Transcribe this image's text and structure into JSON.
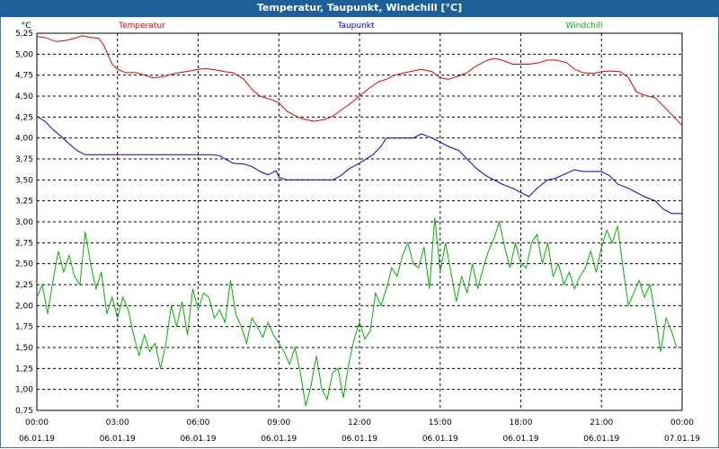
{
  "window": {
    "title": "Temperatur, Taupunkt, Windchill [°C]"
  },
  "chart_data": {
    "type": "line",
    "ylabel": "°C",
    "ylim": [
      0.75,
      5.25
    ],
    "yticks": [
      "5,25",
      "5,00",
      "4,75",
      "4,50",
      "4,25",
      "4,00",
      "3,75",
      "3,50",
      "3,25",
      "3,00",
      "2,75",
      "2,50",
      "2,25",
      "2,00",
      "1,75",
      "1,50",
      "1,25",
      "1,00",
      "0,75"
    ],
    "xlim": [
      0,
      24
    ],
    "xticks": [
      {
        "time": "00:00",
        "date": "06.01.19"
      },
      {
        "time": "03:00",
        "date": "06.01.19"
      },
      {
        "time": "06:00",
        "date": "06.01.19"
      },
      {
        "time": "09:00",
        "date": "06.01.19"
      },
      {
        "time": "12:00",
        "date": "06.01.19"
      },
      {
        "time": "15:00",
        "date": "06.01.19"
      },
      {
        "time": "18:00",
        "date": "06.01.19"
      },
      {
        "time": "21:00",
        "date": "06.01.19"
      },
      {
        "time": "00:00",
        "date": "07.01.19"
      }
    ],
    "grid": true,
    "legend_position": "top",
    "series": [
      {
        "name": "Temperatur",
        "color": "#e00000",
        "points": [
          [
            0,
            5.21
          ],
          [
            0.3,
            5.2
          ],
          [
            0.7,
            5.15
          ],
          [
            1,
            5.16
          ],
          [
            1.3,
            5.18
          ],
          [
            1.7,
            5.22
          ],
          [
            2,
            5.2
          ],
          [
            2.3,
            5.19
          ],
          [
            2.5,
            5.1
          ],
          [
            2.8,
            4.88
          ],
          [
            3,
            4.82
          ],
          [
            3.3,
            4.78
          ],
          [
            3.7,
            4.78
          ],
          [
            4,
            4.75
          ],
          [
            4.3,
            4.72
          ],
          [
            4.7,
            4.73
          ],
          [
            5,
            4.76
          ],
          [
            5.3,
            4.78
          ],
          [
            5.7,
            4.8
          ],
          [
            6,
            4.82
          ],
          [
            6.3,
            4.83
          ],
          [
            6.7,
            4.81
          ],
          [
            7,
            4.79
          ],
          [
            7.3,
            4.78
          ],
          [
            7.7,
            4.7
          ],
          [
            8,
            4.58
          ],
          [
            8.3,
            4.5
          ],
          [
            8.7,
            4.46
          ],
          [
            9,
            4.42
          ],
          [
            9.3,
            4.32
          ],
          [
            9.7,
            4.25
          ],
          [
            10,
            4.22
          ],
          [
            10.3,
            4.2
          ],
          [
            10.7,
            4.22
          ],
          [
            11,
            4.26
          ],
          [
            11.3,
            4.33
          ],
          [
            11.7,
            4.42
          ],
          [
            12,
            4.5
          ],
          [
            12.3,
            4.58
          ],
          [
            12.7,
            4.67
          ],
          [
            13,
            4.7
          ],
          [
            13.3,
            4.75
          ],
          [
            13.7,
            4.78
          ],
          [
            14,
            4.8
          ],
          [
            14.3,
            4.82
          ],
          [
            14.7,
            4.79
          ],
          [
            15,
            4.72
          ],
          [
            15.3,
            4.7
          ],
          [
            15.7,
            4.74
          ],
          [
            16,
            4.78
          ],
          [
            16.3,
            4.85
          ],
          [
            16.7,
            4.92
          ],
          [
            17,
            4.95
          ],
          [
            17.3,
            4.93
          ],
          [
            17.7,
            4.88
          ],
          [
            18,
            4.88
          ],
          [
            18.3,
            4.88
          ],
          [
            18.7,
            4.9
          ],
          [
            19,
            4.93
          ],
          [
            19.3,
            4.93
          ],
          [
            19.7,
            4.9
          ],
          [
            20,
            4.82
          ],
          [
            20.3,
            4.78
          ],
          [
            20.7,
            4.77
          ],
          [
            21,
            4.79
          ],
          [
            21.3,
            4.8
          ],
          [
            21.7,
            4.79
          ],
          [
            22,
            4.72
          ],
          [
            22.3,
            4.55
          ],
          [
            22.7,
            4.5
          ],
          [
            23,
            4.48
          ],
          [
            23.3,
            4.38
          ],
          [
            23.7,
            4.25
          ],
          [
            24,
            4.15
          ]
        ]
      },
      {
        "name": "Taupunkt",
        "color": "#0000d0",
        "points": [
          [
            0,
            4.26
          ],
          [
            0.3,
            4.2
          ],
          [
            0.6,
            4.1
          ],
          [
            0.9,
            4.02
          ],
          [
            1.2,
            3.93
          ],
          [
            1.5,
            3.85
          ],
          [
            1.8,
            3.8
          ],
          [
            2.5,
            3.8
          ],
          [
            3,
            3.8
          ],
          [
            4,
            3.8
          ],
          [
            5,
            3.8
          ],
          [
            6,
            3.8
          ],
          [
            6.5,
            3.8
          ],
          [
            6.8,
            3.79
          ],
          [
            7,
            3.75
          ],
          [
            7.3,
            3.7
          ],
          [
            7.7,
            3.69
          ],
          [
            8,
            3.66
          ],
          [
            8.3,
            3.6
          ],
          [
            8.6,
            3.56
          ],
          [
            8.9,
            3.61
          ],
          [
            9,
            3.53
          ],
          [
            9.3,
            3.5
          ],
          [
            10,
            3.5
          ],
          [
            11,
            3.5
          ],
          [
            11.3,
            3.55
          ],
          [
            11.6,
            3.63
          ],
          [
            12,
            3.7
          ],
          [
            12.5,
            3.8
          ],
          [
            12.8,
            3.9
          ],
          [
            13,
            4.0
          ],
          [
            14,
            4.0
          ],
          [
            14.3,
            4.05
          ],
          [
            14.7,
            4.0
          ],
          [
            15,
            3.95
          ],
          [
            15.3,
            3.9
          ],
          [
            15.7,
            3.85
          ],
          [
            16,
            3.75
          ],
          [
            16.3,
            3.65
          ],
          [
            16.7,
            3.55
          ],
          [
            17,
            3.5
          ],
          [
            17.3,
            3.45
          ],
          [
            17.7,
            3.4
          ],
          [
            18,
            3.35
          ],
          [
            18.3,
            3.3
          ],
          [
            18.6,
            3.4
          ],
          [
            19,
            3.5
          ],
          [
            19.3,
            3.52
          ],
          [
            19.7,
            3.58
          ],
          [
            20,
            3.62
          ],
          [
            20.3,
            3.6
          ],
          [
            21,
            3.6
          ],
          [
            21.3,
            3.55
          ],
          [
            21.6,
            3.45
          ],
          [
            22,
            3.4
          ],
          [
            22.3,
            3.35
          ],
          [
            22.6,
            3.3
          ],
          [
            23,
            3.25
          ],
          [
            23.3,
            3.15
          ],
          [
            23.6,
            3.1
          ],
          [
            24,
            3.1
          ]
        ]
      },
      {
        "name": "Windchill",
        "color": "#00b000",
        "points": [
          [
            0,
            2.1
          ],
          [
            0.2,
            2.25
          ],
          [
            0.4,
            1.9
          ],
          [
            0.6,
            2.3
          ],
          [
            0.8,
            2.65
          ],
          [
            1,
            2.4
          ],
          [
            1.2,
            2.6
          ],
          [
            1.4,
            2.35
          ],
          [
            1.6,
            2.25
          ],
          [
            1.8,
            2.88
          ],
          [
            2,
            2.5
          ],
          [
            2.2,
            2.2
          ],
          [
            2.4,
            2.4
          ],
          [
            2.6,
            1.9
          ],
          [
            2.8,
            2.1
          ],
          [
            3,
            1.85
          ],
          [
            3.2,
            2.1
          ],
          [
            3.4,
            1.95
          ],
          [
            3.6,
            1.65
          ],
          [
            3.8,
            1.4
          ],
          [
            4,
            1.65
          ],
          [
            4.2,
            1.45
          ],
          [
            4.4,
            1.55
          ],
          [
            4.6,
            1.25
          ],
          [
            4.8,
            1.55
          ],
          [
            5,
            2.0
          ],
          [
            5.2,
            1.75
          ],
          [
            5.4,
            2.05
          ],
          [
            5.6,
            1.65
          ],
          [
            5.8,
            2.2
          ],
          [
            6,
            1.95
          ],
          [
            6.2,
            2.15
          ],
          [
            6.4,
            2.1
          ],
          [
            6.6,
            1.85
          ],
          [
            6.8,
            1.95
          ],
          [
            7,
            1.8
          ],
          [
            7.2,
            2.3
          ],
          [
            7.4,
            1.9
          ],
          [
            7.6,
            1.75
          ],
          [
            7.8,
            1.55
          ],
          [
            8,
            1.85
          ],
          [
            8.2,
            1.75
          ],
          [
            8.4,
            1.62
          ],
          [
            8.6,
            1.8
          ],
          [
            8.8,
            1.65
          ],
          [
            9,
            1.55
          ],
          [
            9.2,
            1.45
          ],
          [
            9.4,
            1.3
          ],
          [
            9.6,
            1.5
          ],
          [
            9.8,
            1.2
          ],
          [
            10,
            0.8
          ],
          [
            10.2,
            1.05
          ],
          [
            10.4,
            1.4
          ],
          [
            10.6,
            1.0
          ],
          [
            10.8,
            0.88
          ],
          [
            11,
            1.2
          ],
          [
            11.2,
            1.25
          ],
          [
            11.4,
            0.9
          ],
          [
            11.6,
            1.3
          ],
          [
            11.8,
            1.6
          ],
          [
            12,
            1.8
          ],
          [
            12.2,
            1.6
          ],
          [
            12.4,
            1.7
          ],
          [
            12.6,
            2.15
          ],
          [
            12.8,
            2.0
          ],
          [
            13,
            2.2
          ],
          [
            13.2,
            2.45
          ],
          [
            13.4,
            2.35
          ],
          [
            13.6,
            2.6
          ],
          [
            13.8,
            2.75
          ],
          [
            14,
            2.5
          ],
          [
            14.2,
            2.45
          ],
          [
            14.4,
            2.7
          ],
          [
            14.6,
            2.2
          ],
          [
            14.8,
            3.05
          ],
          [
            15,
            2.4
          ],
          [
            15.2,
            2.75
          ],
          [
            15.4,
            2.4
          ],
          [
            15.6,
            2.05
          ],
          [
            15.8,
            2.35
          ],
          [
            16,
            2.15
          ],
          [
            16.2,
            2.5
          ],
          [
            16.4,
            2.2
          ],
          [
            16.6,
            2.45
          ],
          [
            16.8,
            2.65
          ],
          [
            17,
            2.8
          ],
          [
            17.2,
            3.0
          ],
          [
            17.4,
            2.7
          ],
          [
            17.6,
            2.45
          ],
          [
            17.8,
            2.75
          ],
          [
            18,
            2.5
          ],
          [
            18.2,
            2.45
          ],
          [
            18.4,
            2.75
          ],
          [
            18.6,
            2.85
          ],
          [
            18.8,
            2.5
          ],
          [
            19,
            2.75
          ],
          [
            19.2,
            2.35
          ],
          [
            19.4,
            2.5
          ],
          [
            19.6,
            2.25
          ],
          [
            19.8,
            2.4
          ],
          [
            20,
            2.2
          ],
          [
            20.2,
            2.35
          ],
          [
            20.4,
            2.45
          ],
          [
            20.6,
            2.65
          ],
          [
            20.8,
            2.4
          ],
          [
            21,
            2.7
          ],
          [
            21.2,
            2.9
          ],
          [
            21.4,
            2.75
          ],
          [
            21.6,
            2.95
          ],
          [
            21.8,
            2.45
          ],
          [
            22,
            2.0
          ],
          [
            22.2,
            2.15
          ],
          [
            22.4,
            2.3
          ],
          [
            22.6,
            2.1
          ],
          [
            22.8,
            2.25
          ],
          [
            23,
            1.9
          ],
          [
            23.2,
            1.45
          ],
          [
            23.4,
            1.85
          ],
          [
            23.6,
            1.7
          ],
          [
            23.8,
            1.5
          ]
        ]
      }
    ]
  }
}
